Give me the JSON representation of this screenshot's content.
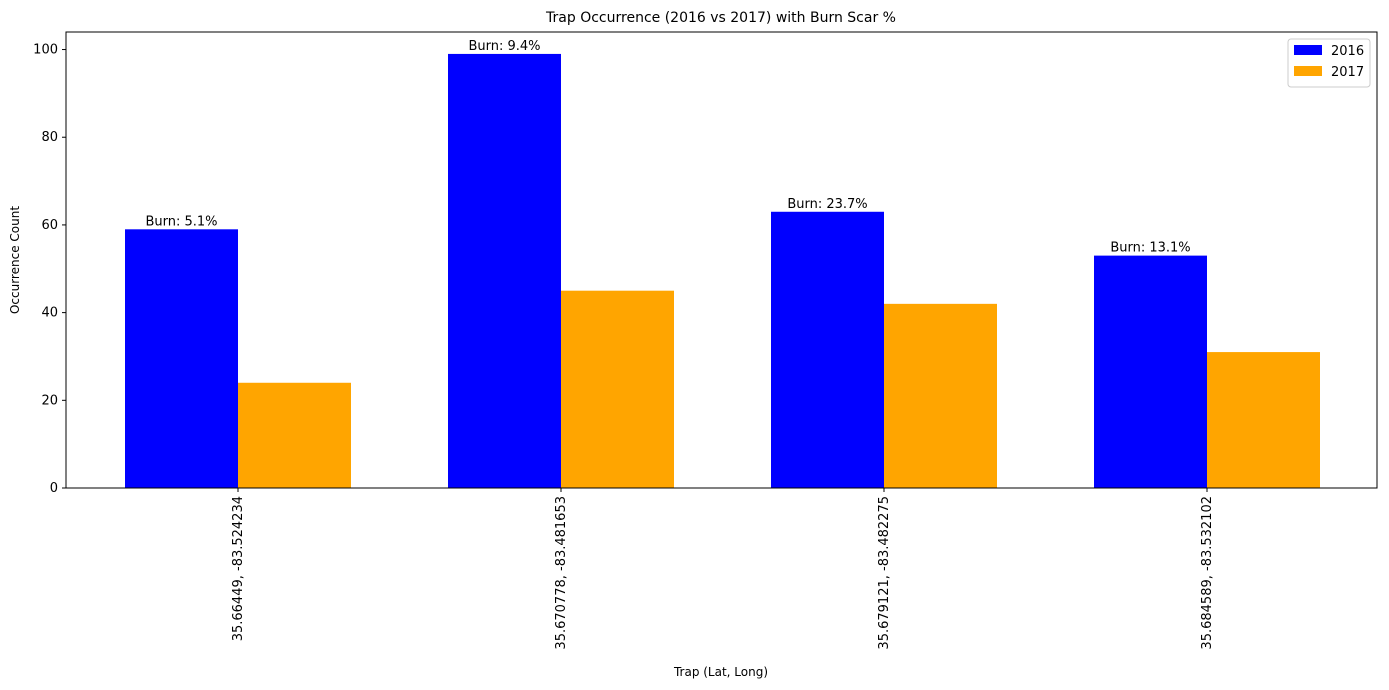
{
  "chart_data": {
    "type": "bar",
    "title": "Trap Occurrence (2016 vs 2017) with Burn Scar %",
    "xlabel": "Trap (Lat, Long)",
    "ylabel": "Occurrence Count",
    "categories": [
      "35.66449, -83.524234",
      "35.670778, -83.481653",
      "35.679121, -83.482275",
      "35.684589, -83.532102"
    ],
    "series": [
      {
        "name": "2016",
        "values": [
          59,
          99,
          63,
          53
        ],
        "color": "#0000ff"
      },
      {
        "name": "2017",
        "values": [
          24,
          45,
          42,
          31
        ],
        "color": "#ffa500"
      }
    ],
    "annotations": [
      "Burn: 5.1%",
      "Burn: 9.4%",
      "Burn: 23.7%",
      "Burn: 13.1%"
    ],
    "ylim": [
      0,
      104
    ],
    "yticks": [
      0,
      20,
      40,
      60,
      80,
      100
    ],
    "legend_position": "top-right",
    "grid": false
  }
}
